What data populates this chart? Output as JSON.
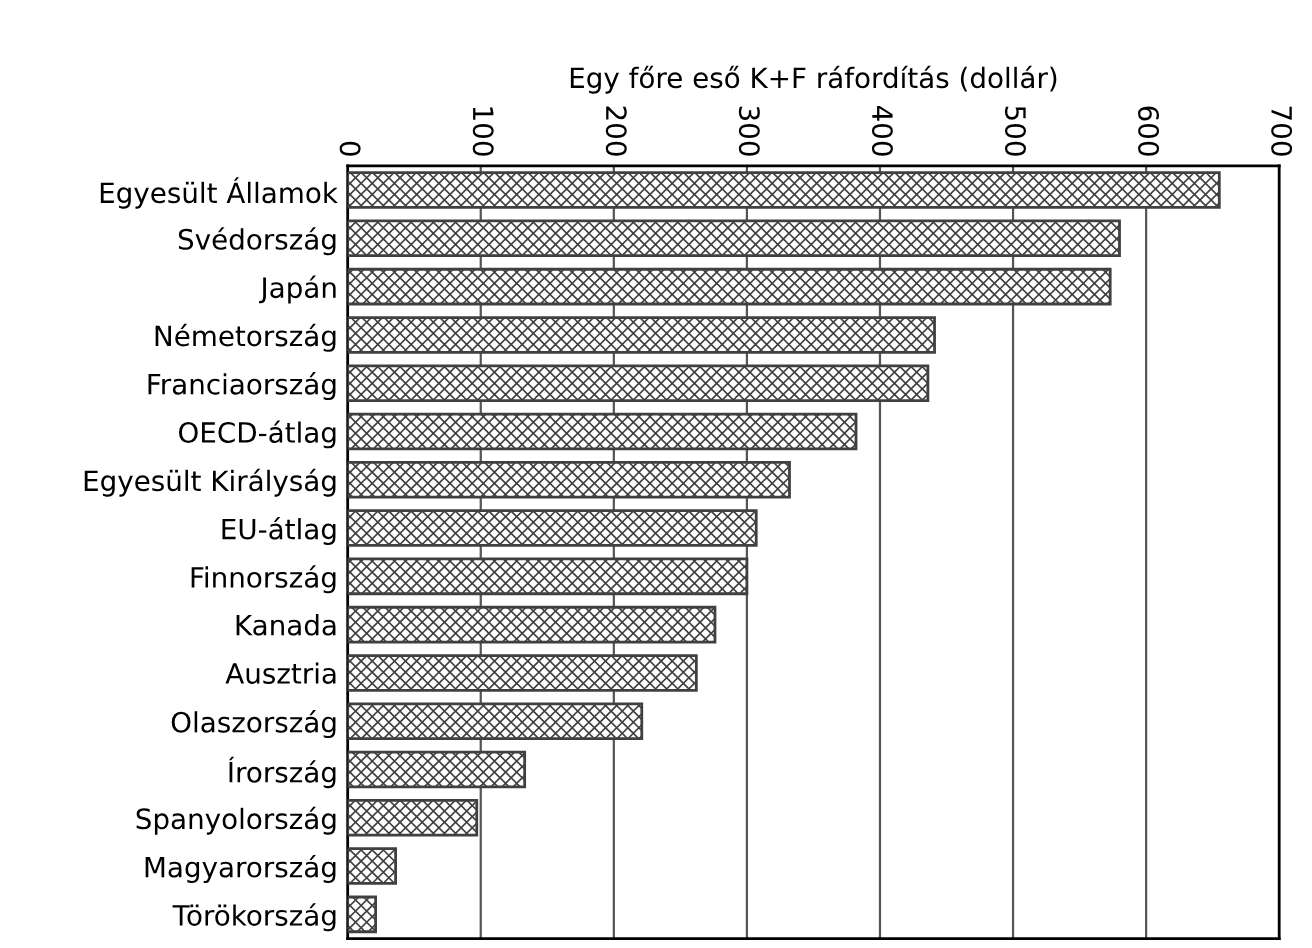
{
  "chart_data": {
    "type": "bar",
    "orientation": "horizontal",
    "xlabel": "Egy főre eső K+F ráfordítás (dollár)",
    "categories": [
      "Egyesült Államok",
      "Svédország",
      "Japán",
      "Németország",
      "Franciaország",
      "OECD-átlag",
      "Egyesült Királyság",
      "EU-átlag",
      "Finnország",
      "Kanada",
      "Ausztria",
      "Olaszország",
      "Írország",
      "Spanyolország",
      "Magyarország",
      "Törökország"
    ],
    "values": [
      655,
      580,
      573,
      441,
      436,
      382,
      332,
      307,
      300,
      276,
      262,
      221,
      133,
      97,
      36,
      21
    ],
    "color": "#404040",
    "xlim": [
      0,
      700
    ],
    "xticks": [
      0,
      100,
      200,
      300,
      400,
      500,
      600,
      700
    ],
    "grid": "x",
    "legend": false
  }
}
